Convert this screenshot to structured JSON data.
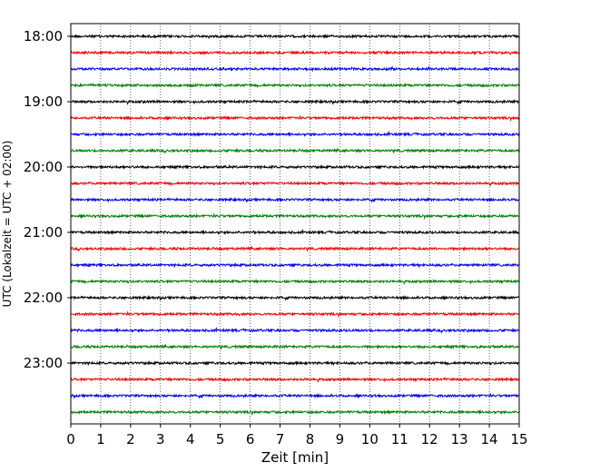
{
  "chart_data": {
    "type": "line",
    "title": "",
    "xlabel": "Zeit  [min]",
    "ylabel": "UTC (Lokalzeit = UTC + 02:00)",
    "xlim": [
      0,
      15
    ],
    "x_ticks": [
      "0",
      "1",
      "2",
      "3",
      "4",
      "5",
      "6",
      "7",
      "8",
      "9",
      "10",
      "11",
      "12",
      "13",
      "14",
      "15"
    ],
    "y_tick_labels": [
      "18:00",
      "19:00",
      "20:00",
      "21:00",
      "22:00",
      "23:00"
    ],
    "grid": "vertical dotted",
    "trace_start": "18:00",
    "trace_interval_minutes": 15,
    "trace_count": 24,
    "trace_colors": [
      "#000000",
      "#ff0000",
      "#0000ff",
      "#008000"
    ]
  }
}
